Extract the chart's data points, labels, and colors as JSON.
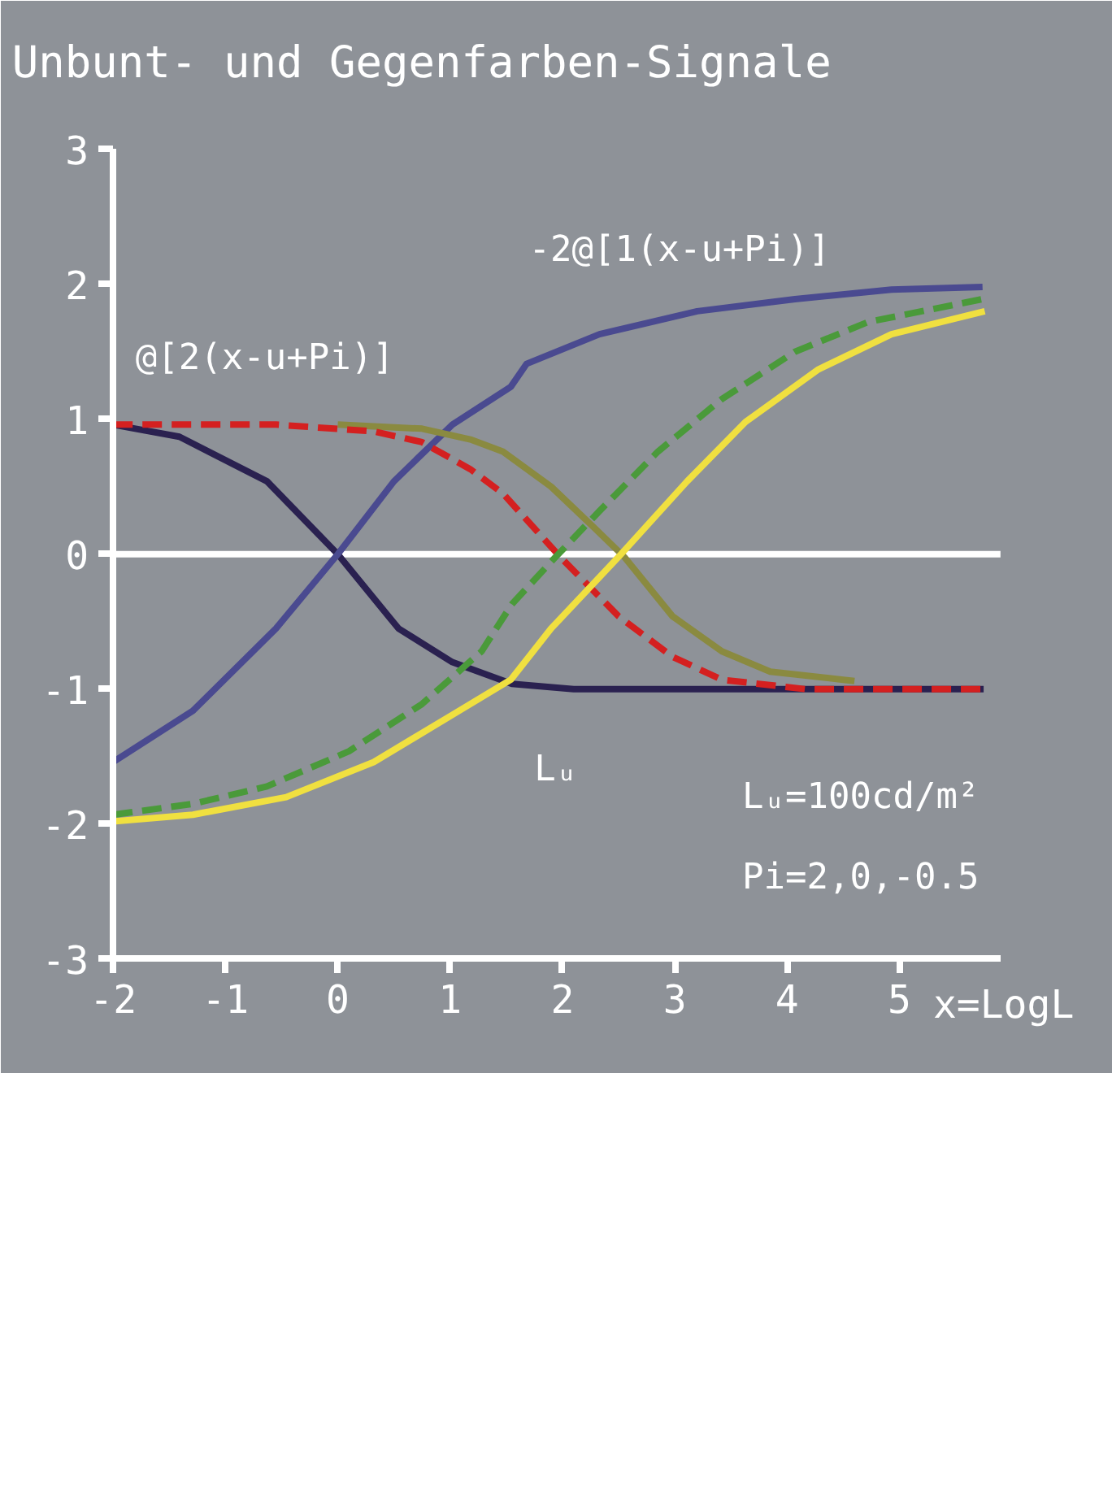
{
  "chart_data": {
    "type": "line",
    "title": "Unbunt- und Gegenfarben-Signale",
    "xlabel": "x=LogL",
    "xlim": [
      -2,
      5.9
    ],
    "ylim": [
      -3,
      3
    ],
    "xticks": [
      -2,
      -1,
      0,
      1,
      2,
      3,
      4,
      5
    ],
    "yticks": [
      -3,
      -2,
      -1,
      0,
      1,
      2,
      3
    ],
    "grid": false,
    "marker": "none",
    "annotations": [
      "@[2(x-u+Pi)]",
      "-2@[1(x-u+Pi)]",
      "Lᵤ",
      "Lᵤ=100cd/m²",
      "Pi=2,0,-0.5"
    ],
    "ref_lines": [
      {
        "axis": "y",
        "value": 0,
        "color": "#ffffff"
      }
    ],
    "series": [
      {
        "color": "#2a2150",
        "line_style": "solid",
        "x": [
          -2,
          -1.41,
          -0.63,
          0,
          0.54,
          1.02,
          1.55,
          2.1,
          3,
          4,
          5,
          5.75
        ],
        "values": [
          0.96,
          0.87,
          0.54,
          0,
          -0.55,
          -0.8,
          -0.96,
          -1.0,
          -1.0,
          -1.0,
          -1.0,
          -1.0
        ]
      },
      {
        "color": "#4a4a90",
        "line_style": "solid",
        "x": [
          -2,
          -1.29,
          -0.55,
          0,
          0.5,
          1.02,
          1.54,
          1.68,
          2.33,
          3.2,
          4.07,
          4.93,
          5.74
        ],
        "values": [
          -1.54,
          -1.16,
          -0.55,
          0,
          0.54,
          0.96,
          1.24,
          1.41,
          1.63,
          1.8,
          1.89,
          1.96,
          1.98
        ]
      },
      {
        "color": "#8a8a40",
        "line_style": "solid",
        "x": [
          0,
          0.75,
          1.18,
          1.47,
          1.9,
          2.29,
          2.55,
          2.98,
          3.42,
          3.85,
          4.5,
          4.6
        ],
        "values": [
          0.96,
          0.93,
          0.85,
          0.76,
          0.5,
          0.19,
          -0.02,
          -0.46,
          -0.72,
          -0.87,
          -0.93,
          -0.94
        ]
      },
      {
        "color": "#d42020",
        "line_style": "dashed",
        "x": [
          -2,
          -0.55,
          0.32,
          0.75,
          1.18,
          1.47,
          1.98,
          2.5,
          2.98,
          3.42,
          4.17,
          5.75
        ],
        "values": [
          0.96,
          0.96,
          0.91,
          0.83,
          0.63,
          0.45,
          -0.02,
          -0.46,
          -0.76,
          -0.93,
          -1.0,
          -1.0
        ]
      },
      {
        "color": "#f0e040",
        "line_style": "solid",
        "x": [
          -2,
          -1.29,
          -0.46,
          0.32,
          1.02,
          1.54,
          1.9,
          2.5,
          3.11,
          3.63,
          4.28,
          4.93,
          5.76
        ],
        "values": [
          -1.98,
          -1.93,
          -1.8,
          -1.54,
          -1.19,
          -0.93,
          -0.55,
          -0.02,
          0.54,
          0.98,
          1.37,
          1.63,
          1.8
        ]
      },
      {
        "color": "#4a9a3a",
        "line_style": "dashed",
        "x": [
          -2,
          -1.29,
          -0.63,
          0.1,
          0.75,
          1.28,
          1.55,
          1.94,
          2.33,
          2.85,
          3.42,
          4.07,
          4.72,
          5.74
        ],
        "values": [
          -1.93,
          -1.85,
          -1.72,
          -1.46,
          -1.11,
          -0.72,
          -0.37,
          -0.02,
          0.32,
          0.76,
          1.15,
          1.5,
          1.72,
          1.89
        ]
      }
    ]
  }
}
